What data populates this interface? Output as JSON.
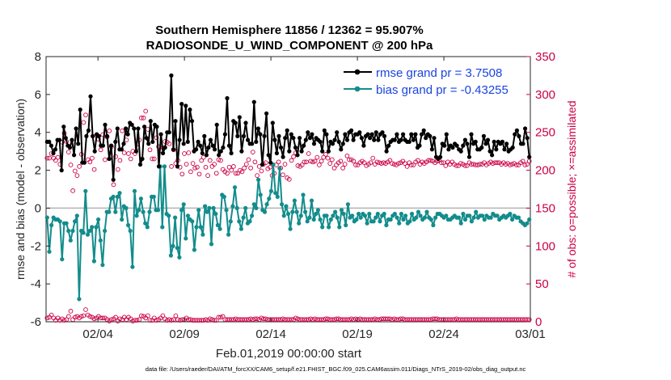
{
  "chart_data": {
    "type": "line",
    "title": [
      "Southern Hemisphere 11856 / 12362 = 95.907%",
      "RADIOSONDE_U_WIND_COMPONENT @ 200 hPa"
    ],
    "xlabel": "Feb.01,2019 00:00:00 start",
    "ylabel": "rmse and bias (model - observation)",
    "ylabel_right": "# of obs: o=possible; ×=assimilated",
    "footer": "data file: /Users/raeder/DAI/ATM_forcXX/CAM6_setup/f.e21.FHIST_BGC.f09_025.CAM6assim.011/Diags_NTrS_2019-02/obs_diag_output.nc",
    "xlim": [
      1.0,
      29.0
    ],
    "ylim": [
      -6,
      8
    ],
    "ylim_right": [
      0,
      350
    ],
    "xticks": [
      {
        "value": 4,
        "label": "02/04"
      },
      {
        "value": 9,
        "label": "02/09"
      },
      {
        "value": 14,
        "label": "02/14"
      },
      {
        "value": 19,
        "label": "02/19"
      },
      {
        "value": 24,
        "label": "02/24"
      },
      {
        "value": 29,
        "label": "03/01"
      }
    ],
    "yticks": [
      -6,
      -4,
      -2,
      0,
      2,
      4,
      6,
      8
    ],
    "yticks_right": [
      0,
      50,
      100,
      150,
      200,
      250,
      300,
      350
    ],
    "legend": {
      "position": "top-right",
      "entries": [
        "rmse grand pr = 3.7508",
        "bias grand pr = -0.43255"
      ]
    },
    "series": [
      {
        "name": "rmse",
        "color": "#000000",
        "values": [
          3.5,
          3.5,
          3.3,
          2.9,
          3.1,
          3.6,
          3.6,
          2.0,
          4.3,
          3.7,
          3.3,
          3.2,
          3.6,
          2.8,
          4.2,
          3.4,
          5.2,
          2.4,
          2.4,
          3.8,
          4.1,
          5.9,
          3.8,
          3.0,
          3.9,
          3.8,
          3.3,
          3.3,
          4.4,
          3.8,
          2.6,
          3.3,
          1.5,
          3.5,
          4.2,
          3.1,
          3.1,
          3.4,
          4.2,
          3.9,
          4.5,
          4.4,
          4.2,
          3.0,
          4.2,
          2.3,
          2.6,
          4.3,
          3.7,
          3.4,
          4.6,
          3.5,
          4.4,
          4.3,
          2.2,
          3.9,
          2.9,
          3.2,
          4.0,
          4.0,
          7.0,
          3.1,
          4.6,
          2.2,
          3.6,
          5.5,
          3.4,
          5.4,
          3.5,
          5.2,
          4.6,
          3.0,
          3.1,
          3.5,
          3.3,
          2.9,
          3.8,
          2.8,
          3.2,
          3.6,
          3.3,
          3.1,
          4.4,
          2.8,
          3.0,
          3.2,
          3.9,
          5.8,
          3.3,
          2.9,
          4.6,
          4.5,
          3.8,
          4.8,
          3.0,
          3.8,
          4.5,
          3.6,
          3.4,
          3.4,
          5.6,
          3.5,
          4.2,
          3.9,
          2.3,
          3.8,
          5.0,
          2.8,
          2.4,
          4.5,
          3.6,
          2.9,
          3.8,
          3.2,
          2.7,
          3.7,
          4.1,
          3.0,
          3.9,
          3.7,
          3.2,
          2.8,
          3.7,
          3.0,
          3.3,
          3.6,
          4.0,
          3.7,
          3.9,
          3.4,
          3.7,
          3.6,
          3.5,
          3.0,
          4.1,
          3.9,
          3.0,
          3.5,
          3.4,
          3.6,
          4.0,
          3.5,
          3.1,
          3.4,
          3.9,
          3.6,
          4.0,
          4.1,
          3.6,
          3.9,
          3.9,
          4.0,
          3.7,
          3.3,
          3.8,
          3.9,
          3.7,
          3.9,
          3.6,
          4.0,
          3.6,
          3.9,
          4.0,
          3.8,
          3.0,
          3.3,
          3.5,
          3.6,
          3.6,
          3.9,
          3.5,
          3.6,
          3.9,
          3.6,
          3.5,
          3.5,
          3.9,
          3.6,
          3.9,
          3.2,
          3.3,
          3.9,
          4.1,
          3.7,
          3.9,
          3.8,
          3.1,
          3.7,
          2.7,
          2.6,
          2.7,
          3.4,
          3.3,
          3.9,
          3.1,
          3.3,
          3.2,
          3.4,
          3.3,
          3.1,
          3.0,
          3.3,
          3.6,
          3.4,
          2.7,
          3.9,
          3.4,
          3.5,
          3.1,
          3.1,
          3.2,
          3.8,
          3.4,
          3.6,
          3.0,
          2.8,
          3.5,
          3.1,
          3.5,
          3.4,
          3.5,
          3.1,
          3.4,
          3.0,
          3.1,
          3.2,
          3.9,
          4.1,
          3.8,
          3.4,
          3.4,
          4.2,
          3.7,
          2.7
        ]
      },
      {
        "name": "bias",
        "color": "#138c8c",
        "values": [
          -0.5,
          -2.3,
          -0.9,
          -0.5,
          -0.6,
          -0.6,
          -0.7,
          -2.7,
          -0.8,
          -0.8,
          -1.2,
          -1.7,
          -1.2,
          -0.7,
          -0.4,
          -4.8,
          -1.2,
          -1.3,
          0.9,
          -1.4,
          -1.2,
          -1.0,
          -2.8,
          -1.0,
          -0.6,
          -1.7,
          -3.0,
          -1.2,
          -0.2,
          -0.2,
          0.5,
          0.6,
          -0.2,
          0.6,
          0.8,
          -0.6,
          0.1,
          0.0,
          -0.9,
          -1.2,
          -3.1,
          0.9,
          -0.4,
          -0.1,
          0.5,
          -0.2,
          -0.8,
          -1.0,
          -0.2,
          0.6,
          0.6,
          -0.1,
          -0.1,
          2.2,
          -1.0,
          2.2,
          -0.3,
          -0.4,
          -2.5,
          -2.0,
          -0.5,
          -2.1,
          -2.6,
          -0.1,
          0.2,
          -1.6,
          -0.4,
          -0.6,
          -0.7,
          -2.2,
          -1.0,
          -0.1,
          -1.0,
          -1.4,
          0.1,
          -0.2,
          0.0,
          -1.9,
          0.0,
          -0.3,
          -0.9,
          -1.1,
          0.7,
          0.6,
          -0.1,
          -1.4,
          -0.7,
          0.1,
          1.1,
          0.0,
          -0.7,
          -1.1,
          -0.5,
          0.0,
          -0.8,
          -0.7,
          -0.4,
          0.2,
          0.0,
          1.5,
          0.7,
          -0.1,
          -0.2,
          0.2,
          0.5,
          0.9,
          2.3,
          0.8,
          0.6,
          2.1,
          0.2,
          -0.4,
          0.1,
          -0.3,
          -1.1,
          -0.2,
          0.4,
          -0.2,
          -0.8,
          -0.4,
          0.7,
          -0.2,
          -0.7,
          -0.5,
          0.4,
          -0.6,
          -0.3,
          -0.1,
          -0.6,
          -1.0,
          -0.4,
          -0.4,
          -1.0,
          -0.6,
          -0.4,
          -0.2,
          -0.5,
          -1.0,
          -0.1,
          -0.3,
          -0.9,
          0.2,
          -0.5,
          -0.4,
          -0.7,
          -0.6,
          -0.3,
          -0.5,
          -0.3,
          -0.4,
          -0.8,
          -0.3,
          -0.7,
          -0.7,
          -0.5,
          -0.3,
          -0.7,
          -0.4,
          -0.3,
          -0.9,
          -0.6,
          -0.6,
          -0.4,
          -0.3,
          -0.5,
          -0.8,
          -0.3,
          -0.6,
          -0.4,
          -0.8,
          -0.7,
          -0.3,
          -0.6,
          -0.5,
          -0.2,
          -0.4,
          -0.6,
          -0.5,
          -0.2,
          -0.5,
          -0.6,
          -0.9,
          -0.5,
          -0.3,
          -0.3,
          -0.4,
          -0.5,
          -0.4,
          -0.6,
          -0.6,
          -0.5,
          -0.4,
          -0.5,
          -0.5,
          -0.8,
          -0.3,
          -0.6,
          -0.4,
          -0.4,
          -0.7,
          -0.5,
          -0.2,
          -0.5,
          -0.4,
          -0.4,
          -0.6,
          -0.4,
          -0.5,
          -0.5,
          -0.3,
          -0.4,
          -0.4,
          -0.6,
          -0.5,
          -0.4,
          -0.5,
          -0.4,
          -0.3,
          -0.6,
          -0.4,
          -0.5,
          -0.5,
          -0.7,
          -0.8,
          -0.9,
          -0.8,
          -0.6
        ]
      },
      {
        "name": "obs_possible",
        "color": "#cc0044",
        "values": [
          5,
          6,
          9,
          5,
          2,
          5,
          2,
          4,
          2,
          3,
          7,
          14,
          3,
          6,
          7,
          5,
          7,
          8,
          16,
          9,
          7,
          6,
          4,
          5,
          7,
          5,
          5,
          5,
          3,
          1,
          3,
          4,
          6,
          1,
          4,
          3,
          6,
          3,
          6,
          4,
          1,
          2,
          2,
          3,
          8,
          7,
          5,
          8,
          2,
          2,
          5,
          2,
          3,
          5,
          8,
          4,
          2,
          3,
          2,
          3,
          8,
          3,
          2,
          3,
          3,
          5,
          3,
          3,
          2,
          2,
          2,
          2,
          2,
          2,
          3,
          2,
          4,
          3,
          2,
          2,
          6,
          6,
          7,
          3,
          3,
          3,
          3,
          3,
          4,
          3,
          3,
          3,
          3,
          3,
          3,
          4,
          3,
          4,
          4,
          3,
          5,
          4,
          4,
          3,
          3,
          3,
          3,
          3,
          3,
          3,
          4,
          3,
          3,
          3,
          3,
          3,
          5,
          4,
          3,
          3,
          3,
          3,
          3,
          4,
          3,
          4,
          3,
          3,
          3,
          3,
          4,
          4,
          3,
          3,
          3,
          4,
          4,
          3,
          3,
          3,
          3,
          3,
          4,
          3,
          4,
          3,
          4,
          3,
          3,
          3,
          3,
          3,
          3,
          4,
          3,
          3,
          4,
          4,
          4,
          4,
          4,
          3,
          4,
          3,
          3,
          4,
          4,
          3,
          3,
          3,
          3,
          3,
          3,
          3,
          3,
          3,
          3,
          3,
          3,
          3,
          4,
          4,
          4,
          3,
          3,
          3,
          3,
          3,
          3,
          3,
          3,
          4,
          3,
          3,
          3,
          3,
          3,
          3,
          3,
          3,
          3,
          3,
          3,
          3,
          3,
          3,
          3,
          3,
          3,
          3,
          3,
          3,
          3,
          3,
          3,
          3,
          3,
          3,
          3,
          3,
          3,
          3,
          3,
          3,
          3,
          3
        ],
        "values_plotted": [
          216,
          216,
          222,
          216,
          213,
          217,
          208,
          237,
          249,
          238,
          224,
          207,
          173,
          199,
          193,
          205,
          221,
          263,
          273,
          214,
          211,
          216,
          201,
          246,
          241,
          227,
          247,
          214,
          244,
          252,
          231,
          181,
          218,
          201,
          213,
          252,
          223,
          240,
          222,
          215,
          225,
          222,
          230,
          240,
          269,
          269,
          278,
          254,
          227,
          215,
          215,
          243,
          231,
          226,
          230,
          238,
          237,
          235,
          205,
          227,
          209,
          213,
          204,
          195,
          222,
          208,
          223,
          198,
          209,
          203,
          204,
          195,
          213,
          217,
          204,
          193,
          213,
          205,
          208,
          196,
          214,
          213,
          201,
          198,
          196,
          204,
          200,
          205,
          196,
          196,
          200,
          198,
          203,
          208,
          214,
          203,
          224,
          211,
          193,
          205,
          199,
          208,
          210,
          202,
          204,
          193,
          196,
          207,
          211,
          203,
          194,
          208,
          190,
          188,
          213,
          218,
          223,
          206,
          205,
          207,
          211,
          211,
          222,
          212,
          211,
          212,
          217,
          207,
          212,
          217,
          221,
          216,
          209,
          214,
          203,
          207,
          210,
          212,
          203,
          208,
          219,
          214,
          214,
          212,
          207,
          207,
          210,
          212,
          210,
          206,
          208,
          210,
          216,
          208,
          211,
          210,
          209,
          210,
          209,
          211,
          213,
          209,
          208,
          207,
          209,
          210,
          212,
          209,
          205,
          210,
          207,
          207,
          211,
          213,
          208,
          211,
          209,
          211,
          213,
          213,
          212,
          210,
          212,
          213,
          210,
          210,
          206,
          211,
          208,
          211,
          208,
          206,
          206,
          209,
          208,
          206,
          206,
          210,
          208,
          208,
          207,
          207,
          208,
          208,
          210,
          207,
          209,
          211,
          209,
          210,
          210,
          210,
          208,
          210,
          208,
          209,
          207,
          208,
          209,
          207,
          207,
          210,
          212,
          207,
          208,
          212
        ]
      }
    ]
  }
}
